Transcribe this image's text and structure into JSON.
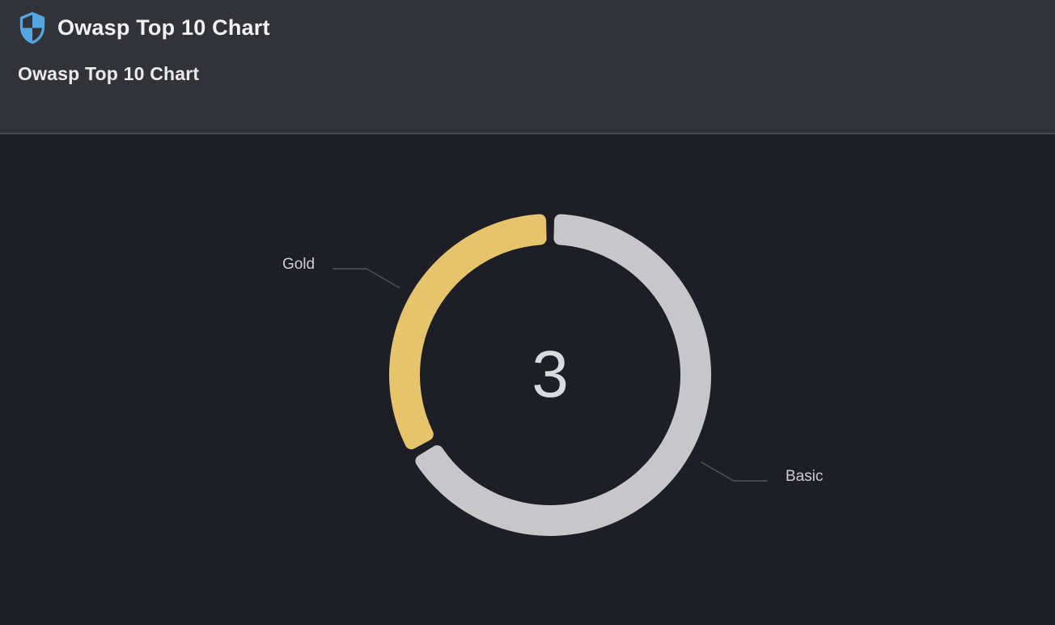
{
  "header": {
    "app_title": "Owasp Top 10 Chart",
    "panel_title": "Owasp Top 10 Chart",
    "icon": "shield-checkered-icon"
  },
  "colors": {
    "page_bg": "#1e1e27",
    "header_bg": "#323338",
    "header_border": "#4a4b51",
    "title_text": "#f1f2f4",
    "shield_blue": "#55a5e0",
    "gold_segment": "#e6c46b",
    "basic_segment": "#c7c7c9",
    "label_text": "#cdced3",
    "leader_line": "#50525a",
    "center_text": "#d8dade"
  },
  "chart_data": {
    "type": "pie",
    "variant": "donut",
    "title": "Owasp Top 10 Chart",
    "center_label": "3",
    "total": 3,
    "segments": [
      {
        "label": "Basic",
        "value": 2,
        "color": "#c7c7c9"
      },
      {
        "label": "Gold",
        "value": 1,
        "color": "#e6c46b"
      }
    ],
    "legend_position": "callout-labels",
    "start_angle_deg": 0,
    "clockwise": true,
    "pad_angle_deg": 3,
    "outer_radius_px": 199,
    "inner_radius_px": 161
  }
}
